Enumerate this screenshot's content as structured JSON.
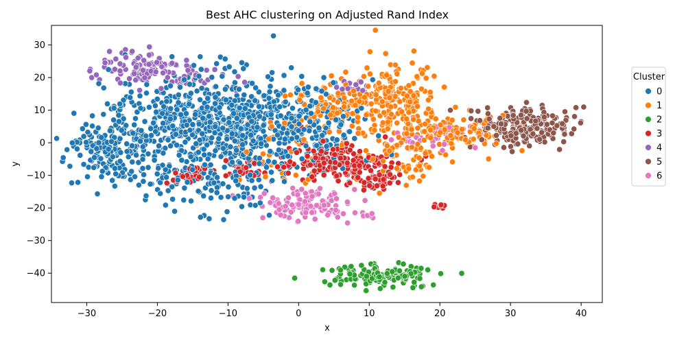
{
  "chart_data": {
    "type": "scatter",
    "title": "Best AHC clustering on Adjusted Rand Index",
    "xlabel": "x",
    "ylabel": "y",
    "xlim": [
      -35,
      43
    ],
    "ylim": [
      -49,
      36
    ],
    "xticks": [
      -30,
      -20,
      -10,
      0,
      10,
      20,
      30,
      40
    ],
    "yticks": [
      -40,
      -30,
      -20,
      -10,
      0,
      10,
      20,
      30
    ],
    "grid": false,
    "legend": {
      "title": "Cluster",
      "placement": "right"
    },
    "series": [
      {
        "name": "0",
        "color": "#1f77b4",
        "clusters": [
          {
            "cx": -14,
            "cy": 6,
            "sx": 7,
            "sy": 7,
            "n": 520
          },
          {
            "cx": -27,
            "cy": -4,
            "sx": 3,
            "sy": 4,
            "n": 140
          },
          {
            "cx": -5,
            "cy": 8,
            "sx": 5,
            "sy": 8,
            "n": 220
          },
          {
            "cx": -12,
            "cy": -12,
            "sx": 5,
            "sy": 5,
            "n": 120
          },
          {
            "cx": 4,
            "cy": 4,
            "sx": 4,
            "sy": 6,
            "n": 90
          }
        ]
      },
      {
        "name": "1",
        "color": "#ff7f0e",
        "clusters": [
          {
            "cx": 14,
            "cy": 12,
            "sx": 3.5,
            "sy": 6,
            "n": 230
          },
          {
            "cx": 5,
            "cy": 12,
            "sx": 3,
            "sy": 4,
            "n": 90
          },
          {
            "cx": 23,
            "cy": 3,
            "sx": 3,
            "sy": 3,
            "n": 100
          },
          {
            "cx": 15,
            "cy": -5,
            "sx": 3,
            "sy": 4,
            "n": 60
          },
          {
            "cx": 0,
            "cy": -2,
            "sx": 5,
            "sy": 6,
            "n": 50
          }
        ]
      },
      {
        "name": "2",
        "color": "#2ca02c",
        "clusters": [
          {
            "cx": 12,
            "cy": -41,
            "sx": 4,
            "sy": 1.6,
            "n": 140
          }
        ]
      },
      {
        "name": "3",
        "color": "#d62728",
        "clusters": [
          {
            "cx": 5,
            "cy": -6,
            "sx": 4,
            "sy": 3,
            "n": 160
          },
          {
            "cx": 12,
            "cy": -11,
            "sx": 1.6,
            "sy": 2,
            "n": 50
          },
          {
            "cx": -15,
            "cy": -10,
            "sx": 1.6,
            "sy": 1.2,
            "n": 30
          },
          {
            "cx": -7,
            "cy": -8,
            "sx": 2,
            "sy": 1.5,
            "n": 25
          },
          {
            "cx": 20,
            "cy": -19.5,
            "sx": 0.6,
            "sy": 0.5,
            "n": 8
          }
        ]
      },
      {
        "name": "4",
        "color": "#9467bd",
        "clusters": [
          {
            "cx": -22,
            "cy": 23,
            "sx": 3,
            "sy": 2.5,
            "n": 110
          },
          {
            "cx": -15,
            "cy": 20,
            "sx": 3,
            "sy": 2,
            "n": 20
          },
          {
            "cx": 8,
            "cy": 17,
            "sx": 1.2,
            "sy": 1,
            "n": 12
          }
        ]
      },
      {
        "name": "5",
        "color": "#8c564b",
        "clusters": [
          {
            "cx": 32,
            "cy": 5,
            "sx": 3.5,
            "sy": 3,
            "n": 230
          }
        ]
      },
      {
        "name": "6",
        "color": "#e377c2",
        "clusters": [
          {
            "cx": 1,
            "cy": -19,
            "sx": 3.5,
            "sy": 2.2,
            "n": 110
          },
          {
            "cx": 21,
            "cy": 2,
            "sx": 2.5,
            "sy": 2,
            "n": 30
          },
          {
            "cx": 10,
            "cy": -22,
            "sx": 1,
            "sy": 1,
            "n": 10
          },
          {
            "cx": 16,
            "cy": 0,
            "sx": 1.5,
            "sy": 1.5,
            "n": 12
          }
        ]
      }
    ]
  }
}
